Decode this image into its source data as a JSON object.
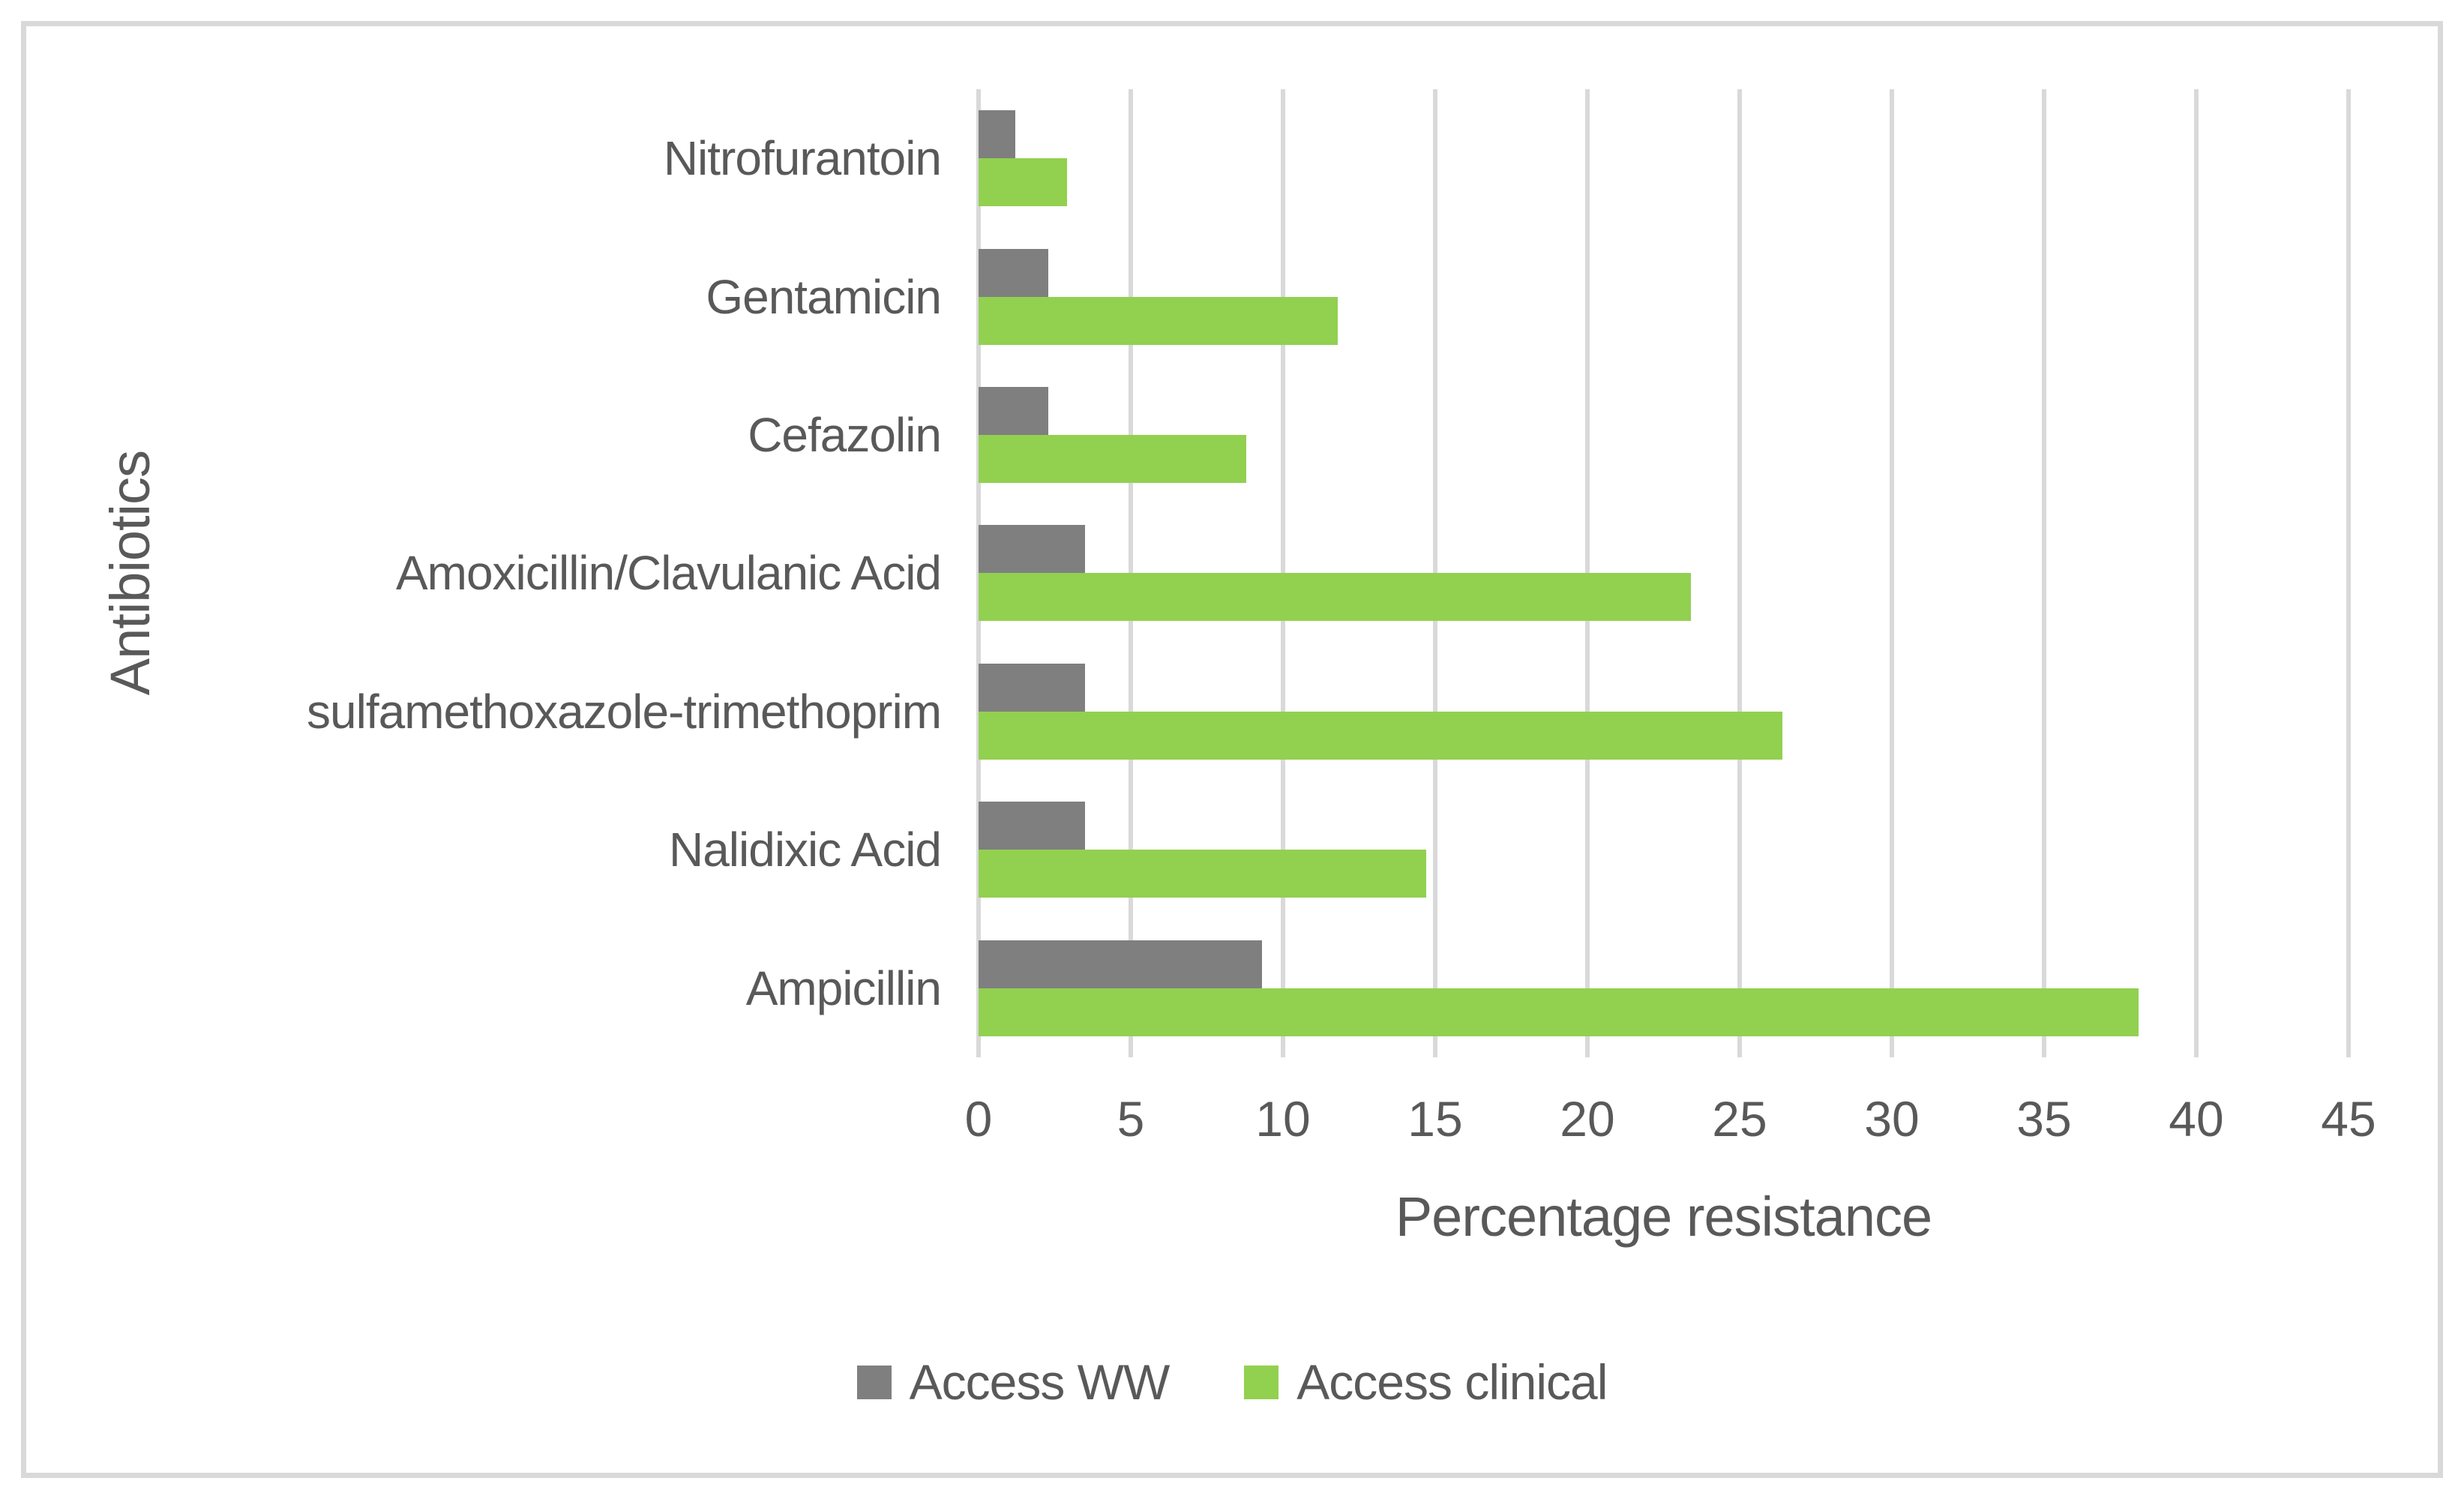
{
  "chart_data": {
    "type": "bar",
    "orientation": "horizontal",
    "xlabel": "Percentage resistance",
    "ylabel": "Antibiotics",
    "categories": [
      "Nitrofurantoin",
      "Gentamicin",
      "Cefazolin",
      "Amoxicillin/Clavulanic Acid",
      "sulfamethoxazole-trimethoprim",
      "Nalidixic Acid",
      "Ampicillin"
    ],
    "series": [
      {
        "name": "Access WW",
        "color": "#7F7F7F",
        "values": [
          1.2,
          2.3,
          2.3,
          3.5,
          3.5,
          3.5,
          9.3
        ]
      },
      {
        "name": "Access clinical",
        "color": "#92D050",
        "values": [
          2.9,
          11.8,
          8.8,
          23.4,
          26.4,
          14.7,
          38.1
        ]
      }
    ],
    "xlim": [
      0,
      45
    ],
    "xticks": [
      0,
      5,
      10,
      15,
      20,
      25,
      30,
      35,
      40,
      45
    ],
    "grid": true,
    "legend_position": "bottom",
    "gridline_color": "#D9D9D9",
    "text_color": "#595959",
    "frame_color": "#D9D9D9",
    "background_color": "#FFFFFF"
  }
}
